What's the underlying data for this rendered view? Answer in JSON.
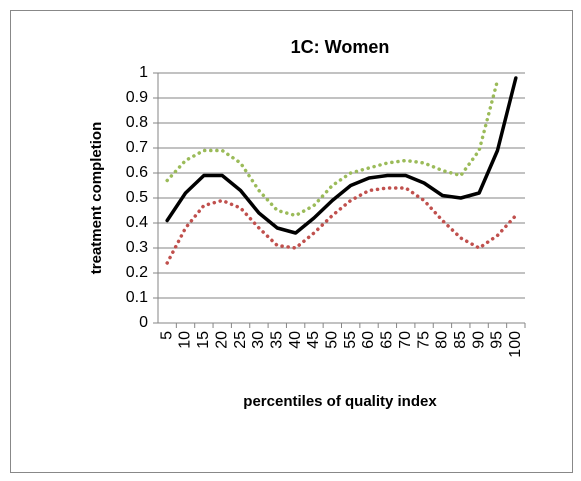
{
  "chart_data": {
    "type": "line",
    "title": "1C: Women",
    "x_label": "percentiles of quality index",
    "y_label": "treatment completion",
    "categories": [
      "5",
      "10",
      "15",
      "20",
      "25",
      "30",
      "35",
      "40",
      "45",
      "50",
      "55",
      "60",
      "65",
      "70",
      "75",
      "80",
      "85",
      "90",
      "95",
      "100"
    ],
    "series": [
      {
        "color": "#9bbb59",
        "style": "dotted",
        "values": [
          0.57,
          0.65,
          0.69,
          0.69,
          0.64,
          0.53,
          0.45,
          0.43,
          0.47,
          0.55,
          0.6,
          0.62,
          0.64,
          0.65,
          0.64,
          0.61,
          0.59,
          0.69,
          0.97,
          null
        ]
      },
      {
        "color": "#c0504d",
        "style": "dotted",
        "values": [
          0.24,
          0.38,
          0.47,
          0.49,
          0.46,
          0.38,
          0.31,
          0.3,
          0.36,
          0.43,
          0.49,
          0.53,
          0.54,
          0.54,
          0.49,
          0.41,
          0.34,
          0.3,
          0.35,
          0.43
        ]
      },
      {
        "color": "#000000",
        "style": "solid",
        "values": [
          0.41,
          0.52,
          0.59,
          0.59,
          0.53,
          0.44,
          0.38,
          0.36,
          0.42,
          0.49,
          0.55,
          0.58,
          0.59,
          0.59,
          0.56,
          0.51,
          0.5,
          0.52,
          0.69,
          0.98
        ]
      }
    ],
    "ylim": [
      0,
      1
    ],
    "yticks": [
      0,
      0.1,
      0.2,
      0.3,
      0.4,
      0.5,
      0.6,
      0.7,
      0.8,
      0.9,
      1
    ],
    "grid": true
  }
}
